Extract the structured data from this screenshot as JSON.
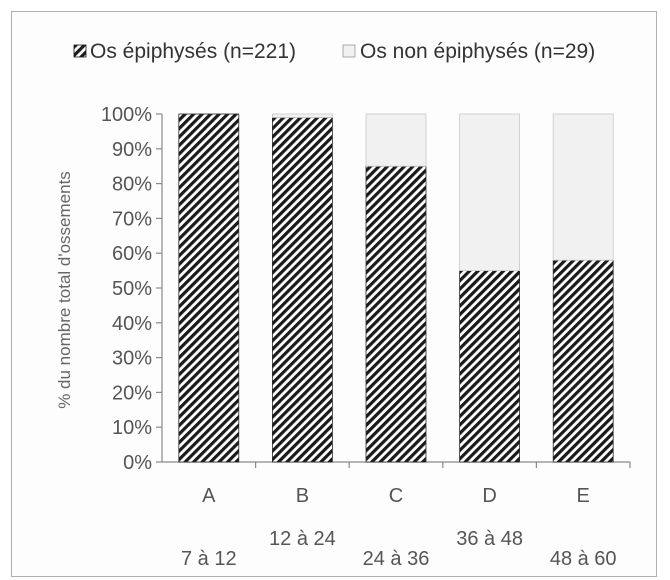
{
  "chart_data": {
    "type": "bar",
    "stacked": true,
    "percent": true,
    "categories": [
      "A",
      "B",
      "C",
      "D",
      "E"
    ],
    "sublabels": [
      "7 à 12",
      "12 à 24",
      "24 à 36",
      "36 à 48",
      "48 à 60"
    ],
    "series": [
      {
        "name": "Os épiphysés (n=221)",
        "values": [
          100,
          99,
          85,
          55,
          58
        ],
        "pattern": "diagonal-hatch",
        "color": "#1a1a1a"
      },
      {
        "name": "Os non épiphysés (n=29)",
        "values": [
          0,
          1,
          15,
          45,
          42
        ],
        "pattern": "solid",
        "color": "#f1f1f1"
      }
    ],
    "title": "",
    "xlabel": "",
    "ylabel": "% du nombre total d'ossements",
    "ylim": [
      0,
      100
    ],
    "yticks": [
      "0%",
      "10%",
      "20%",
      "30%",
      "40%",
      "50%",
      "60%",
      "70%",
      "80%",
      "90%",
      "100%"
    ],
    "grid": false,
    "legend": "top"
  }
}
